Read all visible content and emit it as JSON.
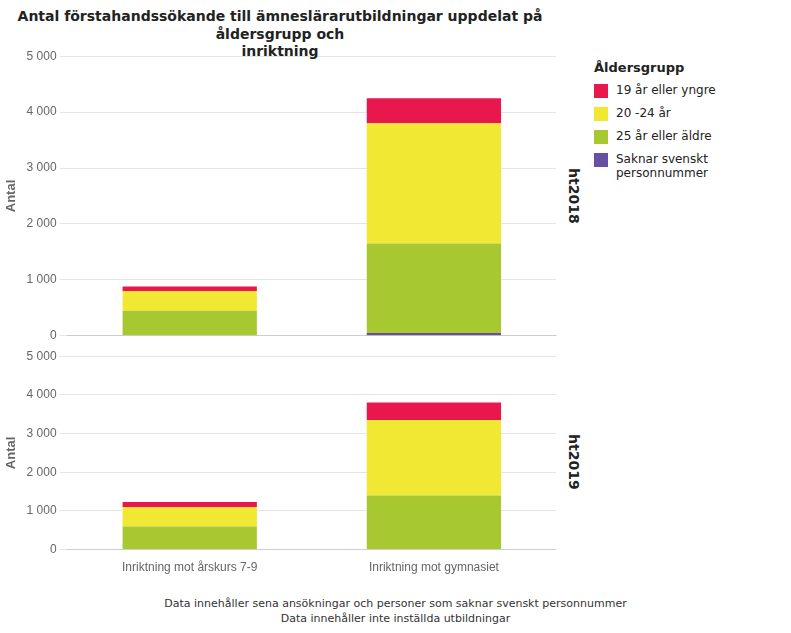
{
  "chart_data": [
    {
      "type": "bar",
      "stacked": true,
      "title": "Antal förstahandssökande till ämneslärarutbildningar uppdelat på åldersgrupp och\ninriktning",
      "categories": [
        "Inriktning mot årskurs 7-9",
        "Inriktning mot gymnasiet"
      ],
      "series": [
        {
          "name": "19 år eller yngre",
          "color": "#e8174d",
          "values": [
            80,
            450
          ]
        },
        {
          "name": "20 -24 år",
          "color": "#f0e832",
          "values": [
            350,
            2150
          ]
        },
        {
          "name": "25 år eller äldre",
          "color": "#a8c832",
          "values": [
            450,
            1600
          ]
        },
        {
          "name": "Saknar svenskt\npersonnummer",
          "color": "#6650a4",
          "values": [
            0,
            50
          ]
        }
      ],
      "ylabel": "Antal",
      "ylim": [
        0,
        5000
      ],
      "yticks": [
        0,
        {
          "value": 1000,
          "label": "1 000"
        },
        {
          "value": 2000,
          "label": "2 000"
        },
        {
          "value": 3000,
          "label": "3 000"
        },
        {
          "value": 4000,
          "label": "4 000"
        },
        {
          "value": 5000,
          "label": "5 000"
        }
      ],
      "grid": true,
      "tick_labels": "y",
      "legend": "right",
      "legend_title": "Åldersgrupp",
      "annotations": [
        "ht2018"
      ]
    },
    {
      "type": "bar",
      "stacked": true,
      "categories": [
        "Inriktning mot årskurs 7-9",
        "Inriktning mot gymnasiet"
      ],
      "series": [
        {
          "name": "19 år eller yngre",
          "color": "#e8174d",
          "values": [
            130,
            450
          ]
        },
        {
          "name": "20 -24 år",
          "color": "#f0e832",
          "values": [
            500,
            1950
          ]
        },
        {
          "name": "25 år eller äldre",
          "color": "#a8c832",
          "values": [
            600,
            1400
          ]
        },
        {
          "name": "Saknar svenskt\npersonnummer",
          "color": "#6650a4",
          "values": [
            0,
            0
          ]
        }
      ],
      "ylabel": "Antal",
      "ylim": [
        0,
        5000
      ],
      "yticks": [
        0,
        {
          "value": 1000,
          "label": "1 000"
        },
        {
          "value": 2000,
          "label": "2 000"
        },
        {
          "value": 3000,
          "label": "3 000"
        },
        {
          "value": 4000,
          "label": "4 000"
        },
        {
          "value": 5000,
          "label": "5 000"
        }
      ],
      "grid": true,
      "annotations": [
        "ht2019",
        "Data innehåller sena ansökningar och personer som saknar svenskt personnummer",
        "Data innehåller inte inställda utbildningar"
      ]
    }
  ]
}
